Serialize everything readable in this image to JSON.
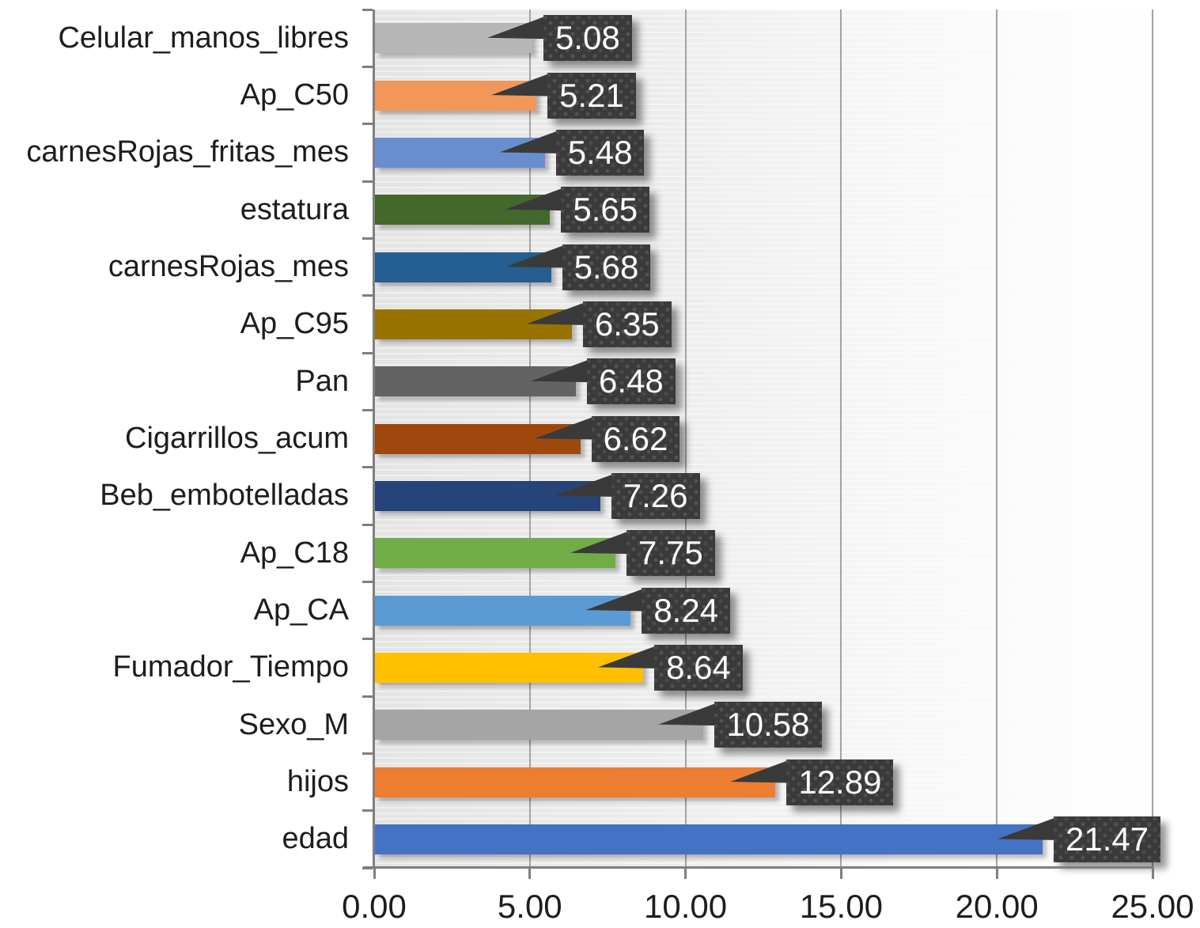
{
  "chart_data": {
    "type": "bar",
    "orientation": "horizontal",
    "title": "",
    "xlabel": "",
    "ylabel": "",
    "xlim": [
      0,
      25
    ],
    "grid": true,
    "legend": "none",
    "x_ticks": [
      0,
      5,
      10,
      15,
      20,
      25
    ],
    "x_tick_labels": [
      "0.00",
      "5.00",
      "10.00",
      "15.00",
      "20.00",
      "25.00"
    ],
    "categories": [
      "Celular_manos_libres",
      "Ap_C50",
      "carnesRojas_fritas_mes",
      "estatura",
      "carnesRojas_mes",
      "Ap_C95",
      "Pan",
      "Cigarrillos_acum",
      "Beb_embotelladas",
      "Ap_C18",
      "Ap_CA",
      "Fumador_Tiempo",
      "Sexo_M",
      "hijos",
      "edad"
    ],
    "values": [
      5.08,
      5.21,
      5.48,
      5.65,
      5.68,
      6.35,
      6.48,
      6.62,
      7.26,
      7.75,
      8.24,
      8.64,
      10.58,
      12.89,
      21.47
    ],
    "data_labels": [
      "5.08",
      "5.21",
      "5.48",
      "5.65",
      "5.68",
      "6.35",
      "6.48",
      "6.62",
      "7.26",
      "7.75",
      "8.24",
      "8.64",
      "10.58",
      "12.89",
      "21.47"
    ],
    "bar_colors": [
      "#B7B7B7",
      "#F1975A",
      "#698ED0",
      "#43682B",
      "#255E91",
      "#997300",
      "#636363",
      "#9E480E",
      "#264478",
      "#70AD47",
      "#5B9BD5",
      "#FFC000",
      "#A5A5A5",
      "#ED7D31",
      "#4472C4"
    ],
    "data_label_style": {
      "background": "#3A3A3A",
      "text_color": "#FFFFFF",
      "shape": "callout-pointing-to-bar-end"
    },
    "axis_colors": {
      "axis_line": "#7F7F7F",
      "gridline": "#A3A3A3",
      "tick_text": "#1D1D1D"
    }
  }
}
